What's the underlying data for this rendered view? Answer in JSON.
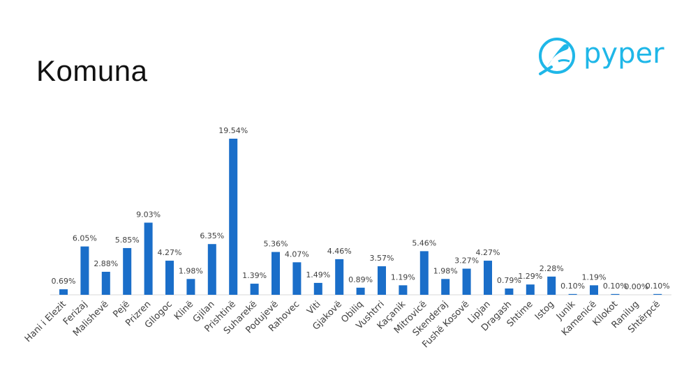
{
  "slide": {
    "title": "Komuna",
    "logo": {
      "text": "pyper",
      "icon": "bird-icon",
      "color": "#1fb7e8"
    }
  },
  "chart_data": {
    "type": "bar",
    "title": "",
    "xlabel": "",
    "ylabel": "",
    "bar_color": "#1a6ec9",
    "ylim": [
      0,
      20
    ],
    "grid": false,
    "categories": [
      "Hani i Elezit",
      "Ferizaj",
      "Malishevë",
      "Pejë",
      "Prizren",
      "Gllogoc",
      "Klinë",
      "Gjilan",
      "Prishtinë",
      "Suharekë",
      "Podujevë",
      "Rahovec",
      "Viti",
      "Gjakovë",
      "Obiliq",
      "Vushtrri",
      "Kaçanik",
      "Mitrovicë",
      "Skenderaj",
      "Fushë Kosovë",
      "Lipjan",
      "Dragash",
      "Shtime",
      "Istog",
      "Junik",
      "Kamenicë",
      "Kllokot",
      "Ranilug",
      "Shtërpcë"
    ],
    "values": [
      0.69,
      6.05,
      2.88,
      5.85,
      9.03,
      4.27,
      1.98,
      6.35,
      19.54,
      1.39,
      5.36,
      4.07,
      1.49,
      4.46,
      0.89,
      3.57,
      1.19,
      5.46,
      1.98,
      3.27,
      4.27,
      0.79,
      1.29,
      2.28,
      0.1,
      1.19,
      0.1,
      0.0,
      0.1
    ],
    "data_labels": [
      "0.69%",
      "6.05%",
      "2.88%",
      "5.85%",
      "9.03%",
      "4.27%",
      "1.98%",
      "6.35%",
      "19.54%",
      "1.39%",
      "5.36%",
      "4.07%",
      "1.49%",
      "4.46%",
      "0.89%",
      "3.57%",
      "1.19%",
      "5.46%",
      "1.98%",
      "3.27%",
      "4.27%",
      "0.79%",
      "1.29%",
      "2.28%",
      "0.10%",
      "1.19%",
      "0.10%",
      "0.00%",
      "0.10%"
    ]
  }
}
